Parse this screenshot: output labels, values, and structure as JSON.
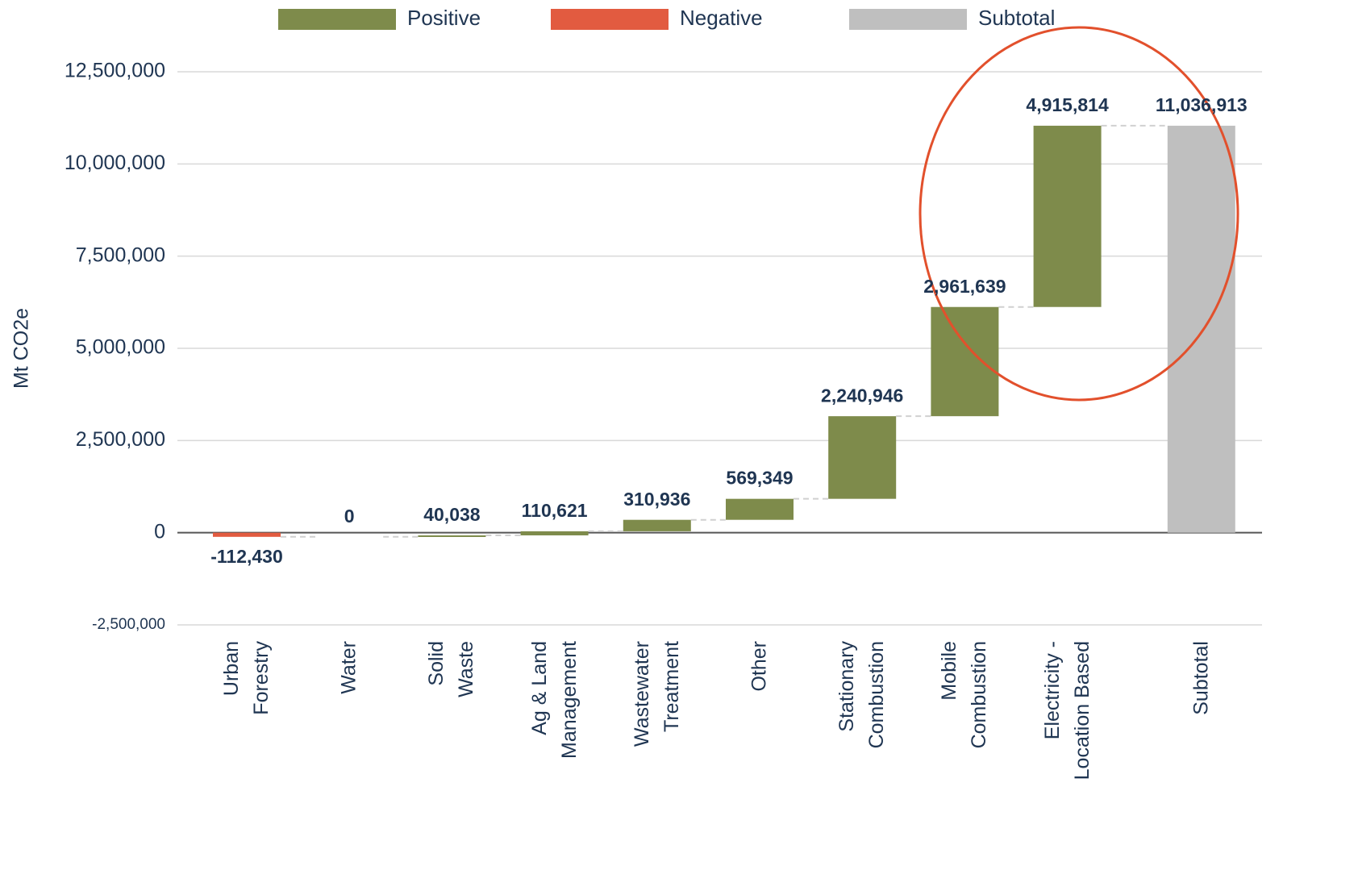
{
  "chart_data": {
    "type": "waterfall",
    "y_label": "Mt CO2e",
    "categories": [
      "Urban\nForestry",
      "Water",
      "Solid\nWaste",
      "Ag & Land\nManagement",
      "Wastewater\nTreatment",
      "Other",
      "Stationary\nCombustion",
      "Mobile\nCombustion",
      "Electricity -\nLocation Based",
      "Subtotal"
    ],
    "values": [
      -112430,
      0,
      40038,
      110621,
      310936,
      569349,
      2240946,
      2961639,
      4915814,
      11036913
    ],
    "value_labels": [
      "-112,430",
      "0",
      "40,038",
      "110,621",
      "310,936",
      "569,349",
      "2,240,946",
      "2,961,639",
      "4,915,814",
      "11,036,913"
    ],
    "is_total": [
      false,
      false,
      false,
      false,
      false,
      false,
      false,
      false,
      false,
      true
    ],
    "legend": [
      {
        "name": "Positive",
        "color": "#7e8b4b"
      },
      {
        "name": "Negative",
        "color": "#e25b40"
      },
      {
        "name": "Subtotal",
        "color": "#bfbfbf"
      }
    ],
    "ylim": [
      -2500000,
      12500000
    ],
    "yticks": [
      {
        "value": -2500000,
        "label": "-2,500,000"
      },
      0,
      {
        "value": 2500000,
        "label": "2,500,000"
      },
      {
        "value": 5000000,
        "label": "5,000,000"
      },
      {
        "value": 7500000,
        "label": "7,500,000"
      },
      {
        "value": 10000000,
        "label": "10,000,000"
      },
      {
        "value": 12500000,
        "label": "12,500,000"
      }
    ],
    "grid": true
  }
}
